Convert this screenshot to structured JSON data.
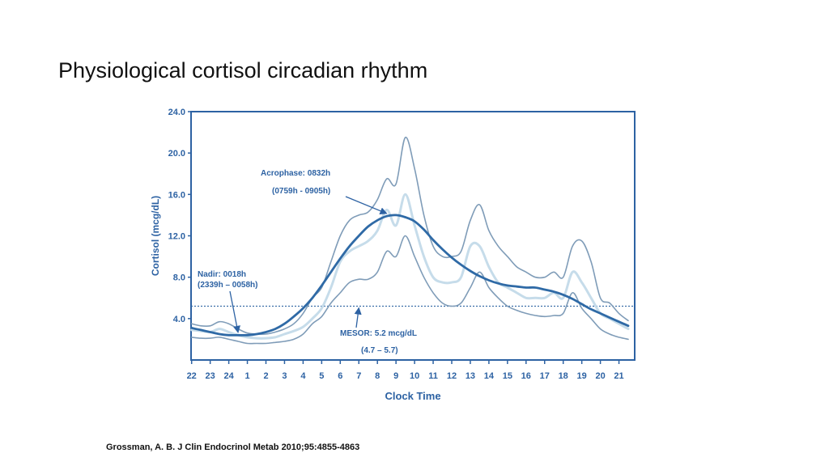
{
  "slide": {
    "title": "Physiological cortisol circadian rhythm",
    "citation": "Grossman, A. B.  J Clin Endocrinol Metab 2010;95:4855-4863"
  },
  "chart_data": {
    "type": "line",
    "title": "",
    "xlabel": "Clock Time",
    "ylabel": "Cortisol (mcg/dL)",
    "ylim": [
      0,
      24
    ],
    "yticks": [
      "4.0",
      "8.0",
      "12.0",
      "16.0",
      "20.0",
      "24.0"
    ],
    "yticks_values": [
      4,
      8,
      12,
      16,
      20,
      24
    ],
    "x_tick_labels": [
      "22",
      "23",
      "24",
      "1",
      "2",
      "3",
      "4",
      "5",
      "6",
      "7",
      "8",
      "9",
      "10",
      "11",
      "12",
      "13",
      "14",
      "15",
      "16",
      "17",
      "18",
      "19",
      "20",
      "21"
    ],
    "grid": false,
    "colors": {
      "frame": "#2d62a3",
      "fit": "#2f6aa6",
      "upper": "#7f9cb8",
      "lower": "#7f9cb8",
      "mean": "#c6dcea",
      "mesor": "#3a6ea8",
      "text": "#2d62a3"
    },
    "x_hours": [
      0,
      0.5,
      1,
      1.5,
      2,
      2.5,
      3,
      3.5,
      4,
      4.5,
      5,
      5.5,
      6,
      6.5,
      7,
      7.5,
      8,
      8.5,
      9,
      9.5,
      10,
      10.5,
      11,
      11.5,
      12,
      12.5,
      13,
      13.5,
      14,
      14.5,
      15,
      15.5,
      16,
      16.5,
      17,
      17.5,
      18,
      18.5,
      19,
      19.5,
      20,
      20.5,
      21,
      21.5,
      22,
      22.5,
      23,
      23.5
    ],
    "series": [
      {
        "key": "upper",
        "values": [
          3.5,
          3.3,
          3.3,
          3.7,
          3.5,
          3.0,
          2.6,
          2.5,
          2.5,
          2.7,
          3.0,
          3.5,
          4.5,
          6.0,
          7.0,
          9.5,
          12.0,
          13.5,
          14.0,
          14.3,
          15.5,
          17.5,
          17.0,
          21.5,
          18.5,
          14.0,
          11.0,
          10.0,
          10.0,
          10.5,
          13.5,
          15.0,
          12.5,
          11.0,
          10.0,
          9.0,
          8.5,
          8.0,
          8.0,
          8.5,
          8.0,
          11.0,
          11.5,
          9.5,
          6.0,
          5.5,
          4.5,
          3.8
        ]
      },
      {
        "key": "mean",
        "values": [
          2.9,
          2.8,
          2.7,
          3.0,
          2.7,
          2.4,
          2.2,
          2.1,
          2.1,
          2.2,
          2.5,
          2.8,
          3.2,
          4.0,
          5.0,
          7.0,
          9.5,
          10.5,
          11.0,
          11.5,
          12.5,
          14.5,
          13.0,
          16.0,
          13.0,
          10.0,
          8.0,
          7.5,
          7.5,
          8.0,
          11.0,
          11.0,
          9.0,
          7.5,
          7.0,
          6.5,
          6.0,
          6.0,
          6.0,
          6.5,
          6.0,
          8.5,
          7.5,
          6.0,
          4.5,
          4.0,
          3.5,
          3.0
        ]
      },
      {
        "key": "lower",
        "values": [
          2.2,
          2.1,
          2.1,
          2.2,
          2.0,
          1.8,
          1.6,
          1.6,
          1.6,
          1.7,
          1.8,
          2.0,
          2.5,
          3.5,
          4.2,
          5.5,
          6.5,
          7.5,
          7.8,
          7.8,
          8.5,
          10.5,
          10.0,
          12.0,
          10.0,
          8.0,
          6.5,
          5.5,
          5.2,
          5.5,
          7.0,
          8.5,
          7.0,
          6.0,
          5.2,
          4.8,
          4.5,
          4.3,
          4.2,
          4.3,
          4.5,
          6.5,
          5.0,
          4.0,
          3.0,
          2.5,
          2.2,
          2.0
        ]
      },
      {
        "key": "fit",
        "values": [
          3.1,
          2.9,
          2.7,
          2.5,
          2.4,
          2.4,
          2.4,
          2.5,
          2.7,
          3.0,
          3.5,
          4.2,
          5.0,
          6.0,
          7.2,
          8.5,
          9.8,
          11.0,
          12.0,
          12.9,
          13.5,
          13.9,
          14.0,
          13.8,
          13.4,
          12.6,
          11.6,
          10.7,
          9.9,
          9.2,
          8.6,
          8.1,
          7.7,
          7.4,
          7.2,
          7.1,
          7.0,
          7.0,
          6.8,
          6.6,
          6.3,
          5.9,
          5.4,
          4.9,
          4.5,
          4.1,
          3.7,
          3.3
        ]
      }
    ],
    "mesor_value": 5.2,
    "annotations": {
      "acrophase": {
        "label": "Acrophase: 0832h",
        "range": "(0759h - 0905h)",
        "target": {
          "x_hour": 10.5,
          "y": 14.0
        }
      },
      "nadir": {
        "label": "Nadir: 0018h",
        "range": "(2339h – 0058h)",
        "target": {
          "x_hour": 2.5,
          "y": 2.5
        }
      },
      "mesor": {
        "label": "MESOR: 5.2 mcg/dL",
        "range": "(4.7 –   5.7)",
        "target": {
          "x_hour": 9.0,
          "y": 5.2
        }
      }
    }
  }
}
